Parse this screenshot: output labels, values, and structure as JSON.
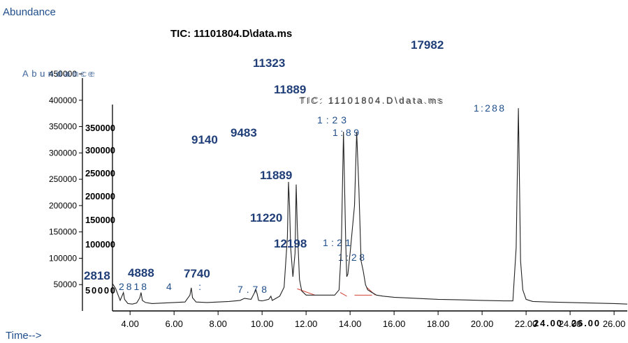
{
  "chart_data": {
    "type": "line",
    "title": "TIC: 11101804.D\\data.ms",
    "ylabel": "Abundance",
    "xlabel": "Time-->",
    "xlim": [
      3.2,
      26.6
    ],
    "ylim": [
      0,
      450000
    ],
    "x_ticks": [
      "4.00",
      "6.00",
      "8.00",
      "10.00",
      "12.00",
      "14.00",
      "16.00",
      "18.00",
      "20.00",
      "22.00",
      "24.00",
      "26.00"
    ],
    "y_ticks": [
      "50000",
      "100000",
      "150000",
      "200000",
      "250000",
      "300000",
      "350000",
      "400000",
      "450000"
    ],
    "series": [
      {
        "x": [
          3.2,
          3.35,
          3.55,
          3.65,
          3.7,
          3.75,
          3.9,
          4.1,
          4.3,
          4.44,
          4.5,
          4.56,
          4.7,
          5.0,
          5.5,
          6.0,
          6.5,
          6.72,
          6.78,
          6.84,
          7.0,
          7.5,
          8.0,
          8.5,
          9.0,
          9.2,
          9.5,
          9.72,
          9.78,
          9.84,
          10.0,
          10.3,
          10.4,
          10.46,
          10.55,
          10.8,
          11.0,
          11.15,
          11.2,
          11.25,
          11.3,
          11.4,
          11.5,
          11.55,
          11.6,
          11.7,
          11.8,
          12.0,
          12.2,
          12.5,
          13.0,
          13.3,
          13.5,
          13.6,
          13.7,
          13.8,
          13.85,
          13.9,
          14.0,
          14.2,
          14.3,
          14.4,
          14.5,
          14.6,
          14.7,
          14.8,
          15.0,
          15.2,
          15.5,
          16.0,
          17.0,
          18.0,
          19.0,
          20.0,
          21.0,
          21.4,
          21.55,
          21.65,
          21.7,
          21.75,
          21.85,
          22.0,
          22.3,
          23.0,
          24.0,
          25.0,
          26.0,
          26.6
        ],
        "y": [
          52000,
          42000,
          20000,
          30000,
          35000,
          22000,
          14000,
          13000,
          15000,
          25000,
          35000,
          20000,
          16000,
          14000,
          15000,
          16000,
          17000,
          30000,
          44000,
          25000,
          17000,
          16000,
          17000,
          18000,
          20000,
          24000,
          22000,
          40000,
          32000,
          20000,
          19000,
          22000,
          28000,
          20000,
          22000,
          28000,
          45000,
          140000,
          245000,
          200000,
          120000,
          65000,
          110000,
          240000,
          160000,
          60000,
          38000,
          30000,
          30000,
          30000,
          30000,
          30000,
          40000,
          120000,
          340000,
          130000,
          65000,
          70000,
          110000,
          200000,
          340000,
          230000,
          95000,
          75000,
          50000,
          40000,
          35000,
          30000,
          28000,
          26000,
          24000,
          22000,
          21000,
          20000,
          19000,
          19000,
          120000,
          385000,
          240000,
          95000,
          40000,
          22000,
          18000,
          17000,
          16000,
          15000,
          14000,
          13000
        ]
      }
    ],
    "peak_labels": [
      {
        "text": "2818",
        "x": 3.35
      },
      {
        "text": "4888",
        "x": 4.45
      },
      {
        "text": "7740",
        "x": 6.78
      },
      {
        "text": "9140",
        "x": 9.0
      },
      {
        "text": "9483",
        "x": 10.1
      },
      {
        "text": "11220",
        "x": 11.25
      },
      {
        "text": "11889",
        "x": 11.3
      },
      {
        "text": "11323",
        "x": 11.4
      },
      {
        "text": "11889",
        "x": 11.6
      },
      {
        "text": "12198",
        "x": 11.95
      },
      {
        "text": "17982",
        "x": 18.6
      }
    ],
    "ghost_labels": [
      "1:2|3",
      "1:|8|9",
      "1:2|1",
      "1:|2|8",
      "1:2|8|8",
      "2818",
      "4:",
      "7.7|8"
    ]
  }
}
